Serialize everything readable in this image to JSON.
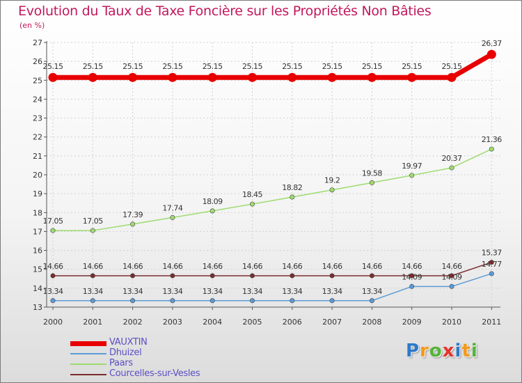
{
  "title": "Evolution du Taux de Taxe Foncière sur les Propriétés Non Bâties",
  "subtitle": "(en %)",
  "logo": {
    "letters": [
      "P",
      "r",
      "o",
      "x",
      "i",
      "t",
      "i"
    ],
    "colors": [
      "#2f79c9",
      "#f29a1d",
      "#53b537",
      "#e8322b",
      "#2f79c9",
      "#f29a1d",
      "#53b537"
    ]
  },
  "colors": {
    "title": "#c2185b",
    "legend_text": "#5b4fc4",
    "grid": "#d0d0d0"
  },
  "chart_data": {
    "type": "line",
    "title": "Evolution du Taux de Taxe Foncière sur les Propriétés Non Bâties",
    "ylabel": "(en %)",
    "xlabel": "",
    "x": [
      "2000",
      "2001",
      "2002",
      "2003",
      "2004",
      "2005",
      "2006",
      "2007",
      "2008",
      "2009",
      "2010",
      "2011"
    ],
    "ylim": [
      13,
      27
    ],
    "yticks": [
      "13",
      "14",
      "15",
      "16",
      "17",
      "18",
      "19",
      "20",
      "21",
      "22",
      "23",
      "24",
      "25",
      "26",
      "27"
    ],
    "grid": true,
    "legend_position": "bottom-left",
    "series": [
      {
        "name": "VAUXTIN",
        "color": "#e80000",
        "line_width": 7,
        "values": [
          25.15,
          25.15,
          25.15,
          25.15,
          25.15,
          25.15,
          25.15,
          25.15,
          25.15,
          25.15,
          25.15,
          26.37
        ],
        "labels": [
          "25.15",
          "25.15",
          "25.15",
          "25.15",
          "25.15",
          "25.15",
          "25.15",
          "25.15",
          "25.15",
          "25.15",
          "25.15",
          "26.37"
        ]
      },
      {
        "name": "Dhuizel",
        "color": "#5b9bd5",
        "line_width": 1.5,
        "values": [
          13.34,
          13.34,
          13.34,
          13.34,
          13.34,
          13.34,
          13.34,
          13.34,
          13.34,
          14.09,
          14.09,
          14.77
        ],
        "labels": [
          "13.34",
          "13.34",
          "13.34",
          "13.34",
          "13.34",
          "13.34",
          "13.34",
          "13.34",
          "13.34",
          "14.09",
          "14.09",
          "14.77"
        ]
      },
      {
        "name": "Paars",
        "color": "#9ddb6f",
        "line_width": 1.5,
        "values": [
          17.05,
          17.05,
          17.39,
          17.74,
          18.09,
          18.45,
          18.82,
          19.2,
          19.58,
          19.97,
          20.37,
          21.36
        ],
        "labels": [
          "17.05",
          "17.05",
          "17.39",
          "17.74",
          "18.09",
          "18.45",
          "18.82",
          "19.2",
          "19.58",
          "19.97",
          "20.37",
          "21.36"
        ]
      },
      {
        "name": "Courcelles-sur-Vesles",
        "color": "#7b2c2c",
        "line_width": 1.5,
        "values": [
          14.66,
          14.66,
          14.66,
          14.66,
          14.66,
          14.66,
          14.66,
          14.66,
          14.66,
          14.66,
          14.66,
          15.37
        ],
        "labels": [
          "14.66",
          "14.66",
          "14.66",
          "14.66",
          "14.66",
          "14.66",
          "14.66",
          "14.66",
          "14.66",
          "14.66",
          "14.66",
          "15.37"
        ]
      }
    ]
  }
}
